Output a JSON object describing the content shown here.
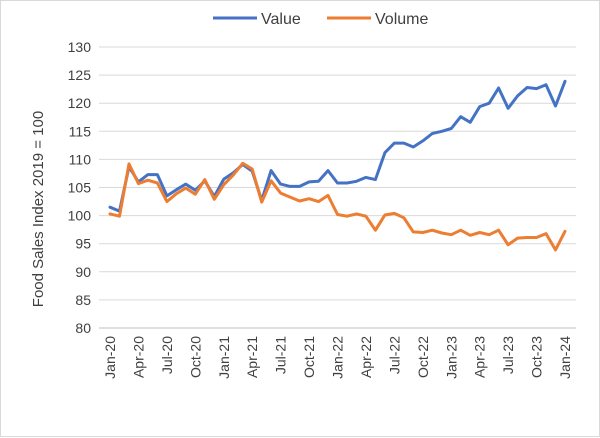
{
  "chart_data": {
    "type": "line",
    "title": "",
    "xlabel": "",
    "ylabel": "Food Sales Index 2019 = 100",
    "ylim": [
      80,
      130
    ],
    "yticks": [
      80,
      85,
      90,
      95,
      100,
      105,
      110,
      115,
      120,
      125,
      130
    ],
    "grid": "horizontal",
    "legend_position": "top",
    "x": [
      "Jan-20",
      "Feb-20",
      "Mar-20",
      "Apr-20",
      "May-20",
      "Jun-20",
      "Jul-20",
      "Aug-20",
      "Sep-20",
      "Oct-20",
      "Nov-20",
      "Dec-20",
      "Jan-21",
      "Feb-21",
      "Mar-21",
      "Apr-21",
      "May-21",
      "Jun-21",
      "Jul-21",
      "Aug-21",
      "Sep-21",
      "Oct-21",
      "Nov-21",
      "Dec-21",
      "Jan-22",
      "Feb-22",
      "Mar-22",
      "Apr-22",
      "May-22",
      "Jun-22",
      "Jul-22",
      "Aug-22",
      "Sep-22",
      "Oct-22",
      "Nov-22",
      "Dec-22",
      "Jan-23",
      "Feb-23",
      "Mar-23",
      "Apr-23",
      "May-23",
      "Jun-23",
      "Jul-23",
      "Aug-23",
      "Sep-23",
      "Oct-23",
      "Nov-23",
      "Dec-23",
      "Jan-24"
    ],
    "xtick_labels": [
      "Jan-20",
      "Apr-20",
      "Jul-20",
      "Oct-20",
      "Jan-21",
      "Apr-21",
      "Jul-21",
      "Oct-21",
      "Jan-22",
      "Apr-22",
      "Jul-22",
      "Oct-22",
      "Jan-23",
      "Apr-23",
      "Jul-23",
      "Oct-23",
      "Jan-24"
    ],
    "series": [
      {
        "name": "Value",
        "color": "#4472C4",
        "values": [
          101.5,
          100.8,
          108.7,
          106.0,
          107.3,
          107.3,
          103.5,
          104.6,
          105.6,
          104.5,
          106.2,
          103.4,
          106.5,
          107.6,
          109.1,
          107.9,
          102.7,
          108.0,
          105.6,
          105.2,
          105.2,
          106.0,
          106.1,
          108.0,
          105.8,
          105.8,
          106.1,
          106.8,
          106.4,
          111.2,
          112.9,
          112.9,
          112.2,
          113.3,
          114.6,
          115.0,
          115.5,
          117.6,
          116.6,
          119.4,
          120.0,
          122.7,
          119.1,
          121.3,
          122.8,
          122.6,
          123.3,
          119.5,
          123.9
        ]
      },
      {
        "name": "Volume",
        "color": "#ED7D31",
        "values": [
          100.3,
          99.9,
          109.2,
          105.7,
          106.3,
          105.8,
          102.5,
          103.9,
          104.9,
          103.8,
          106.4,
          102.9,
          105.5,
          107.2,
          109.3,
          108.3,
          102.4,
          106.2,
          104.0,
          103.3,
          102.6,
          103.0,
          102.5,
          103.6,
          100.2,
          99.9,
          100.3,
          99.9,
          97.4,
          100.1,
          100.4,
          99.6,
          97.1,
          97.0,
          97.4,
          96.9,
          96.6,
          97.4,
          96.5,
          97.0,
          96.6,
          97.4,
          94.8,
          96.0,
          96.1,
          96.1,
          96.8,
          93.9,
          97.2
        ]
      }
    ]
  }
}
